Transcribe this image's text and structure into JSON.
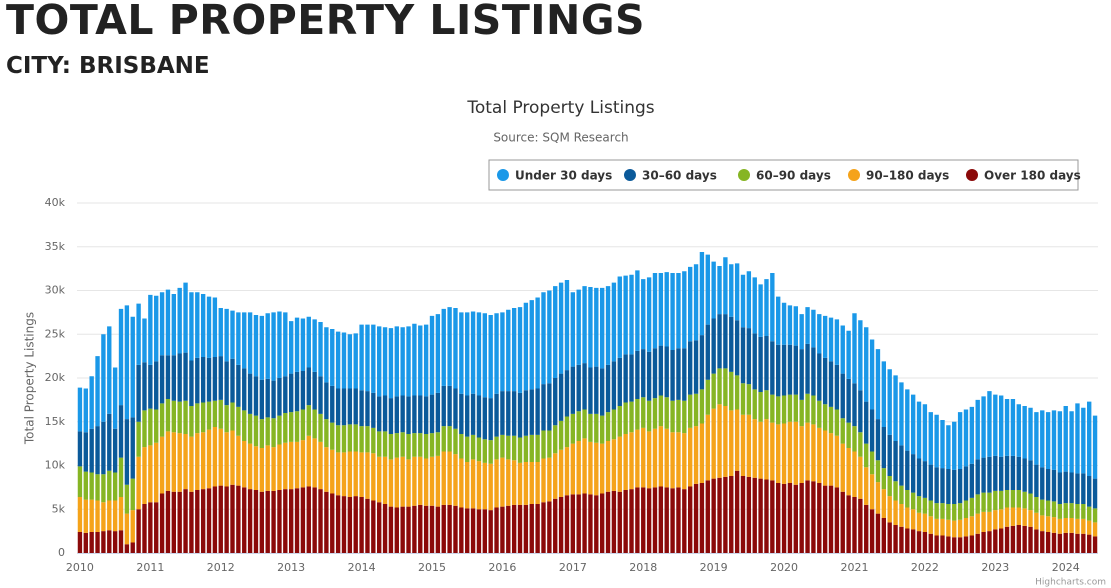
{
  "header": {
    "title": "TOTAL PROPERTY LISTINGS",
    "subtitle": "CITY: BRISBANE"
  },
  "chart_data": {
    "type": "bar",
    "stacked": true,
    "title": "Total Property Listings",
    "subtitle": "Source: SQM Research",
    "y_label": "Total Property Listings",
    "credits": "Highcharts.com",
    "grid": true,
    "ylim": [
      0,
      40000
    ],
    "yticks": [
      0,
      {
        "value": 5000,
        "label": "5k"
      },
      {
        "value": 10000,
        "label": "10k"
      },
      {
        "value": 15000,
        "label": "15k"
      },
      {
        "value": 20000,
        "label": "20k"
      },
      {
        "value": 25000,
        "label": "25k"
      },
      {
        "value": 30000,
        "label": "30k"
      },
      {
        "value": 35000,
        "label": "35k"
      },
      {
        "value": 40000,
        "label": "40k"
      }
    ],
    "categories": [
      "2010",
      null,
      null,
      null,
      null,
      null,
      null,
      null,
      null,
      null,
      null,
      null,
      "2011",
      null,
      null,
      null,
      null,
      null,
      null,
      null,
      null,
      null,
      null,
      null,
      "2012",
      null,
      null,
      null,
      null,
      null,
      null,
      null,
      null,
      null,
      null,
      null,
      "2013",
      null,
      null,
      null,
      null,
      null,
      null,
      null,
      null,
      null,
      null,
      null,
      "2014",
      null,
      null,
      null,
      null,
      null,
      null,
      null,
      null,
      null,
      null,
      null,
      "2015",
      null,
      null,
      null,
      null,
      null,
      null,
      null,
      null,
      null,
      null,
      null,
      "2016",
      null,
      null,
      null,
      null,
      null,
      null,
      null,
      null,
      null,
      null,
      null,
      "2017",
      null,
      null,
      null,
      null,
      null,
      null,
      null,
      null,
      null,
      null,
      null,
      "2018",
      null,
      null,
      null,
      null,
      null,
      null,
      null,
      null,
      null,
      null,
      null,
      "2019",
      null,
      null,
      null,
      null,
      null,
      null,
      null,
      null,
      null,
      null,
      null,
      "2020",
      null,
      null,
      null,
      null,
      null,
      null,
      null,
      null,
      null,
      null,
      null,
      "2021",
      null,
      null,
      null,
      null,
      null,
      null,
      null,
      null,
      null,
      null,
      null,
      "2022",
      null,
      null,
      null,
      null,
      null,
      null,
      null,
      null,
      null,
      null,
      null,
      "2023",
      null,
      null,
      null,
      null,
      null,
      null,
      null,
      null,
      null,
      null,
      null,
      "2024",
      null,
      null,
      null,
      null,
      null
    ],
    "series": [
      {
        "name": "Under 30 days",
        "color": "#1a98e8",
        "values": [
          5000,
          5000,
          6000,
          8000,
          10000,
          10000,
          7000,
          11000,
          13000,
          11500,
          7000,
          5000,
          8000,
          7500,
          7200,
          7500,
          7000,
          7500,
          8000,
          7800,
          7500,
          7200,
          7000,
          6800,
          5500,
          6000,
          5500,
          6000,
          6400,
          7000,
          7000,
          7300,
          7500,
          7800,
          7600,
          7300,
          6000,
          6200,
          6000,
          5800,
          6000,
          6200,
          6300,
          6500,
          6500,
          6400,
          6200,
          6300,
          7500,
          7600,
          7800,
          8000,
          7800,
          8000,
          8000,
          7800,
          8000,
          8200,
          8000,
          8200,
          9000,
          9000,
          8800,
          9000,
          9200,
          9300,
          9500,
          9400,
          9500,
          9600,
          9500,
          9200,
          9000,
          9300,
          9500,
          9800,
          10000,
          10200,
          10400,
          10500,
          10600,
          10500,
          10400,
          10300,
          8500,
          8600,
          8800,
          9200,
          9000,
          9200,
          9000,
          9000,
          9300,
          9000,
          9100,
          9200,
          8000,
          8500,
          8600,
          8300,
          8500,
          8800,
          8600,
          8800,
          8500,
          8700,
          9500,
          8000,
          6500,
          5500,
          6500,
          6000,
          6500,
          6000,
          6500,
          6400,
          6000,
          6500,
          7800,
          5500,
          4800,
          4500,
          4500,
          4000,
          4200,
          4300,
          4500,
          4800,
          5000,
          5200,
          5500,
          5500,
          8000,
          8000,
          8500,
          8000,
          8000,
          7500,
          7500,
          7500,
          7200,
          7000,
          6800,
          6500,
          6500,
          6000,
          6000,
          5500,
          5000,
          5500,
          6500,
          6500,
          6500,
          6800,
          7000,
          7500,
          7000,
          7000,
          6500,
          6500,
          6000,
          6000,
          6000,
          6000,
          6500,
          6500,
          6800,
          7000,
          7500,
          7000,
          8000,
          7500,
          8500,
          7200
        ]
      },
      {
        "name": "30–60 days",
        "color": "#0b5a9a",
        "values": [
          4000,
          4500,
          5000,
          5500,
          6000,
          6500,
          5000,
          6000,
          7500,
          7000,
          6500,
          5500,
          5000,
          5500,
          5500,
          5000,
          5200,
          5500,
          5500,
          5200,
          5200,
          5200,
          5000,
          5000,
          5000,
          5000,
          5000,
          4800,
          4800,
          4600,
          4500,
          4500,
          4400,
          4300,
          4300,
          4200,
          4400,
          4500,
          4400,
          4300,
          4300,
          4300,
          4200,
          4200,
          4200,
          4200,
          4100,
          4100,
          4100,
          4000,
          4000,
          4000,
          4100,
          4100,
          4200,
          4200,
          4300,
          4300,
          4300,
          4300,
          4400,
          4500,
          4600,
          4600,
          4600,
          4600,
          4700,
          4700,
          4800,
          4800,
          4800,
          4900,
          5000,
          5100,
          5100,
          5100,
          5200,
          5200,
          5300,
          5300,
          5400,
          5400,
          5400,
          5300,
          5400,
          5300,
          5300,
          5300,
          5400,
          5400,
          5400,
          5500,
          5500,
          5500,
          5400,
          5500,
          5500,
          5600,
          5700,
          5700,
          5800,
          5800,
          5900,
          6000,
          6100,
          6100,
          6200,
          6300,
          6300,
          6200,
          6200,
          6300,
          6300,
          6400,
          6400,
          6400,
          6300,
          6200,
          6100,
          5900,
          5800,
          5700,
          5600,
          5800,
          5700,
          5500,
          5400,
          5300,
          5200,
          5100,
          5100,
          5000,
          4900,
          4800,
          4800,
          4800,
          4700,
          4700,
          4700,
          4600,
          4600,
          4500,
          4400,
          4300,
          4200,
          4100,
          4100,
          4000,
          4000,
          3900,
          3900,
          3900,
          3900,
          4000,
          4000,
          4100,
          4000,
          3900,
          3900,
          3900,
          3800,
          3800,
          3800,
          3700,
          3700,
          3600,
          3600,
          3600,
          3600,
          3500,
          3500,
          3500,
          3500,
          3400
        ]
      },
      {
        "name": "60–90 days",
        "color": "#86b524",
        "values": [
          3500,
          3200,
          3100,
          3000,
          3200,
          3400,
          3200,
          4500,
          3300,
          3600,
          4000,
          4200,
          4200,
          3800,
          3800,
          3700,
          3600,
          3600,
          3800,
          3500,
          3400,
          3400,
          3200,
          3000,
          3300,
          3100,
          3200,
          3300,
          3500,
          3400,
          3500,
          3300,
          3200,
          3300,
          3300,
          3400,
          3400,
          3500,
          3500,
          3500,
          3300,
          3200,
          3200,
          3100,
          3100,
          3100,
          3100,
          3100,
          3000,
          3000,
          2900,
          2900,
          2900,
          2900,
          2800,
          2800,
          2900,
          2700,
          2700,
          2800,
          2700,
          2700,
          2900,
          2900,
          2900,
          2800,
          2900,
          2800,
          2700,
          2700,
          2700,
          2600,
          2600,
          2700,
          2800,
          2900,
          3000,
          3100,
          3100,
          3200,
          3100,
          3200,
          3300,
          3500,
          3400,
          3400,
          3300,
          3200,
          3300,
          3200,
          3300,
          3400,
          3500,
          3600,
          3500,
          3500,
          3500,
          3500,
          3500,
          3500,
          3600,
          3600,
          3700,
          3700,
          3800,
          3700,
          3900,
          4000,
          4000,
          4100,
          4300,
          4400,
          3900,
          3600,
          3500,
          3400,
          3400,
          3300,
          3200,
          3200,
          3200,
          3100,
          3100,
          3000,
          3300,
          3300,
          3100,
          3000,
          3000,
          3000,
          2900,
          2900,
          2900,
          2800,
          2700,
          2600,
          2500,
          2400,
          2300,
          2200,
          2100,
          2000,
          1900,
          1900,
          1800,
          1800,
          1800,
          1800,
          1800,
          1900,
          1900,
          2000,
          2100,
          2200,
          2200,
          2200,
          2200,
          2100,
          2000,
          2000,
          2000,
          1900,
          1900,
          1800,
          1800,
          1800,
          1800,
          1700,
          1700,
          1700,
          1700,
          1700,
          1600,
          1600
        ]
      },
      {
        "name": "90–180 days",
        "color": "#f5a31a",
        "values": [
          4000,
          3800,
          3700,
          3600,
          3300,
          3400,
          3500,
          3800,
          3500,
          3700,
          6000,
          6500,
          6500,
          6800,
          6500,
          6800,
          6800,
          6700,
          6300,
          6300,
          6500,
          6500,
          6700,
          6800,
          6500,
          6200,
          6200,
          5700,
          5300,
          5200,
          5000,
          5000,
          5200,
          5000,
          5200,
          5300,
          5400,
          5300,
          5400,
          5800,
          5600,
          5400,
          5100,
          5000,
          4900,
          5000,
          5200,
          5100,
          5100,
          5300,
          5400,
          5200,
          5400,
          5400,
          5700,
          5700,
          5400,
          5600,
          5500,
          5400,
          5600,
          5800,
          6100,
          6100,
          5900,
          5600,
          5300,
          5600,
          5500,
          5300,
          5300,
          5500,
          5600,
          5300,
          5100,
          4800,
          4900,
          4800,
          4800,
          5000,
          5000,
          5200,
          5400,
          5500,
          5800,
          6100,
          6300,
          6000,
          6000,
          5700,
          5800,
          5900,
          6300,
          6400,
          6500,
          6600,
          6800,
          6500,
          6700,
          6900,
          6700,
          6400,
          6300,
          6400,
          6700,
          6600,
          6800,
          7500,
          8000,
          8400,
          8100,
          7500,
          7000,
          7000,
          7100,
          6700,
          6500,
          6900,
          6600,
          6700,
          6900,
          7000,
          7200,
          6500,
          6600,
          6500,
          6300,
          6300,
          6000,
          5900,
          5500,
          5400,
          5200,
          4800,
          4300,
          4000,
          3600,
          3300,
          3000,
          2800,
          2600,
          2400,
          2300,
          2100,
          2100,
          2000,
          1900,
          1900,
          1900,
          1900,
          2000,
          2100,
          2200,
          2300,
          2300,
          2200,
          2200,
          2200,
          2200,
          2100,
          2000,
          2000,
          1900,
          1900,
          1800,
          1800,
          1800,
          1700,
          1700,
          1700,
          1700,
          1700,
          1600,
          1600
        ]
      },
      {
        "name": "Over 180 days",
        "color": "#8b0a0a",
        "values": [
          2400,
          2300,
          2400,
          2400,
          2500,
          2600,
          2500,
          2600,
          1000,
          1200,
          5000,
          5600,
          5800,
          5800,
          6800,
          7100,
          7000,
          7000,
          7300,
          7000,
          7200,
          7300,
          7400,
          7600,
          7700,
          7600,
          7800,
          7700,
          7500,
          7300,
          7200,
          7000,
          7100,
          7100,
          7200,
          7300,
          7300,
          7400,
          7500,
          7600,
          7500,
          7300,
          7000,
          6800,
          6600,
          6500,
          6400,
          6500,
          6400,
          6200,
          6000,
          5800,
          5600,
          5300,
          5200,
          5300,
          5300,
          5400,
          5500,
          5400,
          5400,
          5300,
          5500,
          5500,
          5400,
          5200,
          5100,
          5100,
          5000,
          5000,
          4900,
          5200,
          5300,
          5400,
          5500,
          5500,
          5500,
          5600,
          5600,
          5800,
          5900,
          6200,
          6400,
          6600,
          6700,
          6700,
          6800,
          6700,
          6600,
          6800,
          7000,
          7100,
          7000,
          7200,
          7300,
          7500,
          7500,
          7400,
          7500,
          7600,
          7500,
          7400,
          7500,
          7300,
          7600,
          7900,
          8000,
          8300,
          8500,
          8600,
          8700,
          8800,
          9400,
          8800,
          8700,
          8600,
          8500,
          8400,
          8300,
          8000,
          7900,
          8000,
          7800,
          8000,
          8300,
          8200,
          8000,
          7700,
          7700,
          7500,
          7000,
          6600,
          6400,
          6200,
          5500,
          5000,
          4500,
          4000,
          3500,
          3200,
          3000,
          2800,
          2700,
          2500,
          2400,
          2200,
          2000,
          2000,
          1900,
          1800,
          1800,
          1900,
          2000,
          2200,
          2400,
          2500,
          2700,
          2800,
          3000,
          3100,
          3200,
          3100,
          3000,
          2700,
          2500,
          2400,
          2300,
          2200,
          2300,
          2300,
          2200,
          2200,
          2100,
          1900
        ]
      }
    ]
  }
}
